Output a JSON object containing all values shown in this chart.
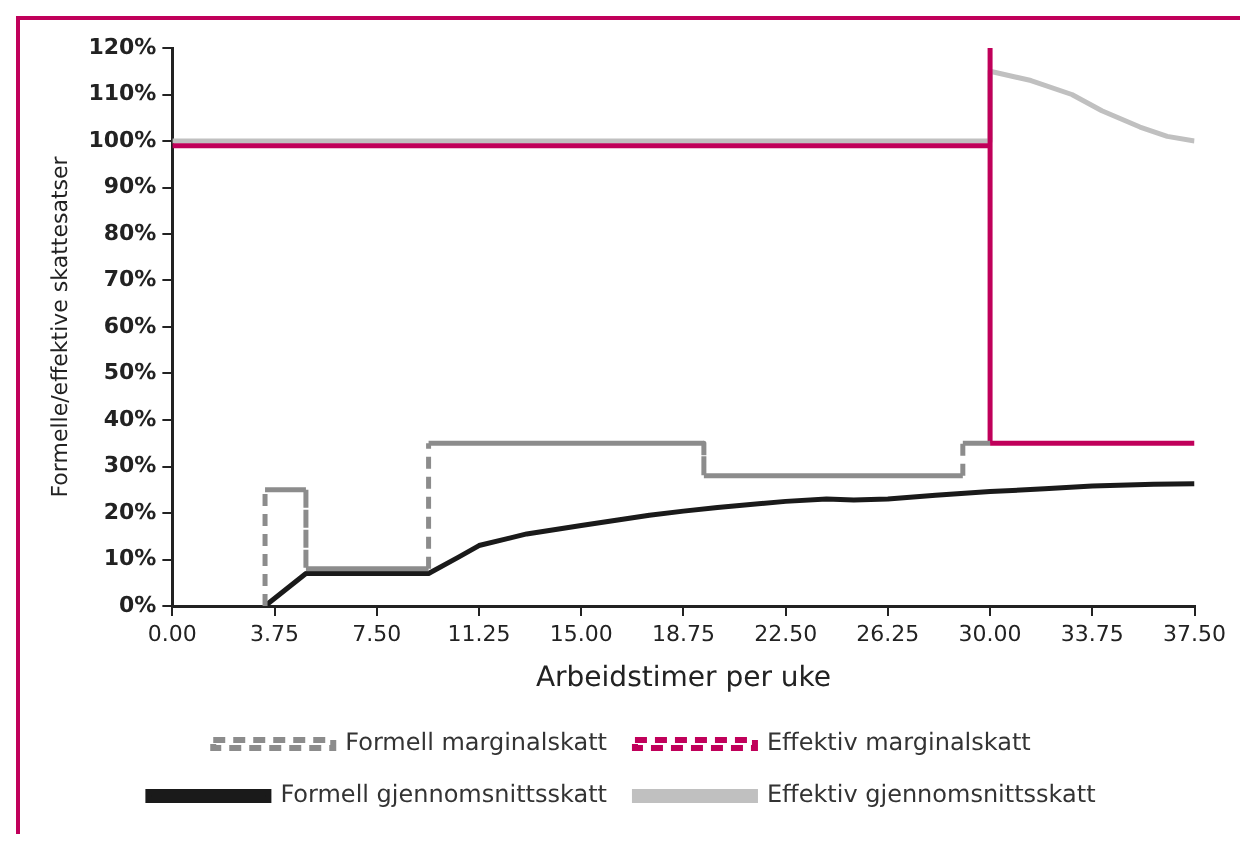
{
  "chart_data": {
    "type": "line",
    "xlabel": "Arbeidstimer per uke",
    "ylabel": "Formelle/effektive skattesatser",
    "xlim": [
      0,
      37.5
    ],
    "ylim": [
      0,
      120
    ],
    "xticks": [
      {
        "value": 0,
        "label": "0.00"
      },
      {
        "value": 3.75,
        "label": "3.75"
      },
      {
        "value": 7.5,
        "label": "7.50"
      },
      {
        "value": 11.25,
        "label": "11.25"
      },
      {
        "value": 15,
        "label": "15.00"
      },
      {
        "value": 18.75,
        "label": "18.75"
      },
      {
        "value": 22.5,
        "label": "22.50"
      },
      {
        "value": 26.25,
        "label": "26.25"
      },
      {
        "value": 30,
        "label": "30.00"
      },
      {
        "value": 33.75,
        "label": "33.75"
      },
      {
        "value": 37.5,
        "label": "37.50"
      }
    ],
    "yticks": [
      {
        "value": 0,
        "label": "0%"
      },
      {
        "value": 10,
        "label": "10%"
      },
      {
        "value": 20,
        "label": "20%"
      },
      {
        "value": 30,
        "label": "30%"
      },
      {
        "value": 40,
        "label": "40%"
      },
      {
        "value": 50,
        "label": "50%"
      },
      {
        "value": 60,
        "label": "60%"
      },
      {
        "value": 70,
        "label": "70%"
      },
      {
        "value": 80,
        "label": "80%"
      },
      {
        "value": 90,
        "label": "90%"
      },
      {
        "value": 100,
        "label": "100%"
      },
      {
        "value": 110,
        "label": "110%"
      },
      {
        "value": 120,
        "label": "120%"
      }
    ],
    "grid": false,
    "legend": "bottom",
    "marker": "none",
    "series": [
      {
        "name": "Formell marginalskatt",
        "color": "#8c8c8c",
        "line_style": "dashed",
        "x": [
          3.4,
          3.4,
          4.9,
          4.9,
          9.4,
          9.4,
          19.5,
          19.5,
          29,
          29,
          30
        ],
        "values": [
          0,
          25,
          25,
          8,
          8,
          35,
          35,
          28,
          28,
          35,
          35
        ]
      },
      {
        "name": "Effektiv marginalskatt",
        "color": "#c0005a",
        "line_style": "dashed",
        "x": [
          0,
          30,
          30,
          30,
          37.5
        ],
        "values": [
          99,
          99,
          120,
          35,
          35
        ]
      },
      {
        "name": "Formell gjennomsnittsskatt",
        "color": "#1a1a1a",
        "line_style": "solid",
        "x": [
          3.4,
          4.9,
          9.4,
          10.5,
          11.25,
          13,
          15,
          17.5,
          18.75,
          20,
          22.5,
          24,
          25,
          26.25,
          28,
          30,
          32,
          33.75,
          36,
          37.5
        ],
        "values": [
          0,
          7,
          7,
          10.5,
          13,
          15.5,
          17.3,
          19.5,
          20.4,
          21.2,
          22.5,
          23,
          22.8,
          23,
          23.8,
          24.6,
          25.2,
          25.8,
          26.2,
          26.3
        ]
      },
      {
        "name": "Effektiv gjennomsnittsskatt",
        "color": "#c0c0c0",
        "line_style": "solid",
        "x": [
          0,
          30,
          30,
          31.5,
          33,
          34.1,
          35.5,
          36.5,
          37.5
        ],
        "values": [
          100,
          100,
          115,
          113,
          110,
          106.5,
          103,
          101,
          100
        ]
      }
    ]
  }
}
